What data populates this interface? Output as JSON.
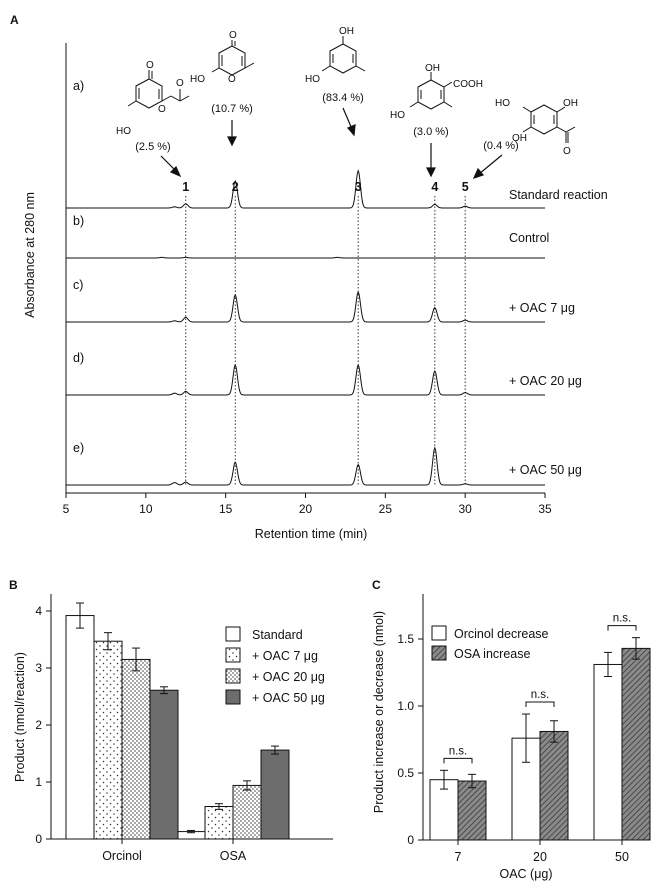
{
  "figure": {
    "panel_labels": [
      "A",
      "B",
      "C"
    ]
  },
  "chart_data": [
    {
      "panel": "A",
      "type": "line",
      "xlabel": "Retention time (min)",
      "ylabel": "Absorbance at 280 nm",
      "xlim": [
        5,
        35
      ],
      "xticks": [
        5,
        10,
        15,
        20,
        25,
        30,
        35
      ],
      "grid": false,
      "peak_positions": [
        {
          "num": "1",
          "rt": 12.5
        },
        {
          "num": "2",
          "rt": 15.6
        },
        {
          "num": "3",
          "rt": 23.3
        },
        {
          "num": "4",
          "rt": 28.1
        },
        {
          "num": "5",
          "rt": 30.0
        }
      ],
      "structure_percentages": [
        "(2.5 %)",
        "(10.7 %)",
        "(83.4 %)",
        "(3.0 %)",
        "(0.4 %)"
      ],
      "structure_substituents": {
        "s1": [
          "HO",
          "O",
          "O",
          "O"
        ],
        "s2": [
          "O",
          "HO",
          "O"
        ],
        "s3": [
          "OH",
          "HO"
        ],
        "s4": [
          "OH",
          "COOH",
          "HO"
        ],
        "s5": [
          "HO",
          "OH",
          "OH",
          "O"
        ]
      },
      "series": [
        {
          "row": "a)",
          "name": "Standard reaction",
          "peaks": [
            0.07,
            0.45,
            0.62,
            0.06,
            0.03
          ],
          "minor": [
            [
              11.8,
              0.02
            ]
          ]
        },
        {
          "row": "b)",
          "name": "Control",
          "peaks": [
            0.01,
            0,
            0,
            0,
            0
          ],
          "minor": [
            [
              11.0,
              0.01
            ],
            [
              22.0,
              0.01
            ]
          ]
        },
        {
          "row": "c)",
          "name": "+ OAC 7 μg",
          "peaks": [
            0.08,
            0.45,
            0.5,
            0.24,
            0.03
          ],
          "minor": [
            [
              11.8,
              0.02
            ]
          ]
        },
        {
          "row": "d)",
          "name": "+ OAC 20 μg",
          "peaks": [
            0.06,
            0.5,
            0.5,
            0.4,
            0.04
          ],
          "minor": [
            [
              11.8,
              0.03
            ]
          ]
        },
        {
          "row": "e)",
          "name": "+ OAC 50 μg",
          "peaks": [
            0.05,
            0.38,
            0.34,
            0.62,
            0.02
          ],
          "minor": [
            [
              11.8,
              0.04
            ]
          ]
        }
      ]
    },
    {
      "panel": "B",
      "type": "bar",
      "categories": [
        "Orcinol",
        "OSA"
      ],
      "ylabel": "Product (nmol/reaction)",
      "ylim": [
        0,
        4.3
      ],
      "yticks": [
        0,
        1,
        2,
        3,
        4
      ],
      "legend_position": "top-right",
      "series": [
        {
          "name": "Standard",
          "values": [
            3.92,
            0.13
          ],
          "errors": [
            0.22,
            0.02
          ],
          "fill": "white"
        },
        {
          "name": "+ OAC 7 μg",
          "values": [
            3.47,
            0.57
          ],
          "errors": [
            0.15,
            0.05
          ],
          "fill": "dots-sparse"
        },
        {
          "name": "+ OAC 20 μg",
          "values": [
            3.15,
            0.94
          ],
          "errors": [
            0.2,
            0.08
          ],
          "fill": "dots-dense"
        },
        {
          "name": "+ OAC 50 μg",
          "values": [
            2.61,
            1.56
          ],
          "errors": [
            0.06,
            0.07
          ],
          "fill": "dark-gray"
        }
      ]
    },
    {
      "panel": "C",
      "type": "bar",
      "categories": [
        "7",
        "20",
        "50"
      ],
      "xlabel": "OAC (μg)",
      "ylabel": "Product  increase or decrease (nmol)",
      "ylim": [
        0,
        1.75
      ],
      "yticks": [
        0,
        0.5,
        1.0,
        1.5
      ],
      "yticklabels": [
        "0",
        "0.5",
        "1.0",
        "1.5"
      ],
      "legend_position": "top-left",
      "annotations": [
        "n.s.",
        "n.s.",
        "n.s."
      ],
      "series": [
        {
          "name": "Orcinol decrease",
          "values": [
            0.45,
            0.76,
            1.31
          ],
          "errors": [
            0.07,
            0.18,
            0.09
          ],
          "fill": "white"
        },
        {
          "name": "OSA increase",
          "values": [
            0.44,
            0.81,
            1.43
          ],
          "errors": [
            0.05,
            0.08,
            0.08
          ],
          "fill": "hatched-gray"
        }
      ]
    }
  ]
}
